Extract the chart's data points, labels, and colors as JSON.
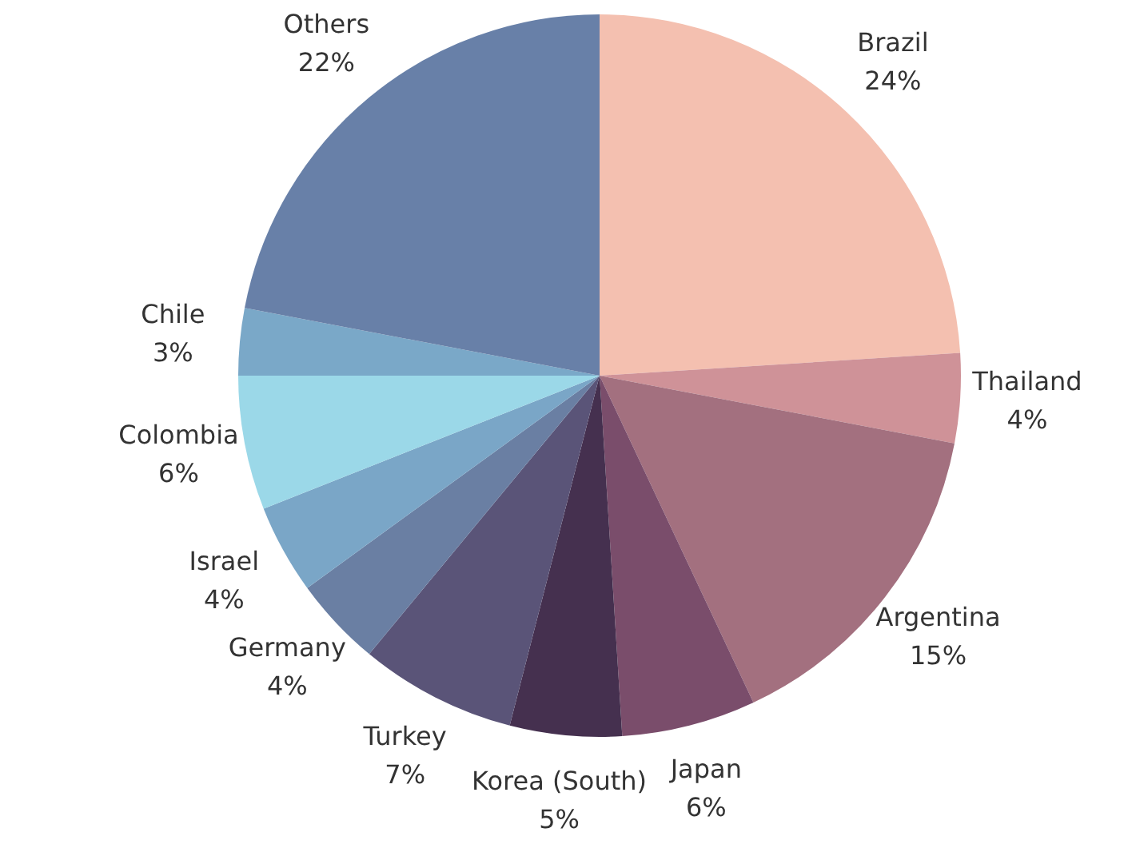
{
  "chart_data": {
    "type": "pie",
    "categories": [
      "Brazil",
      "Thailand",
      "Argentina",
      "Japan",
      "Korea (South)",
      "Turkey",
      "Germany",
      "Israel",
      "Colombia",
      "Chile",
      "Others"
    ],
    "values": [
      24,
      4,
      15,
      6,
      5,
      7,
      4,
      4,
      6,
      3,
      22
    ],
    "value_labels": [
      "24%",
      "4%",
      "15%",
      "6%",
      "5%",
      "7%",
      "4%",
      "4%",
      "6%",
      "3%",
      "22%"
    ],
    "colors": [
      "#f4c0b0",
      "#cf9298",
      "#a3707f",
      "#7a4d6b",
      "#45304f",
      "#5a5478",
      "#6a7fa3",
      "#7aa6c7",
      "#9bd8e8",
      "#7aa8c8",
      "#6880a8"
    ],
    "legend": false
  }
}
